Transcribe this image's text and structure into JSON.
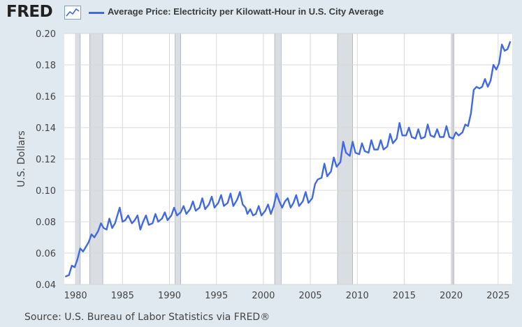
{
  "header": {
    "logo_text": "FRED",
    "logo_icon": "chart-line-icon",
    "series_title": "Average Price: Electricity per Kilowatt-Hour in U.S. City Average"
  },
  "source": "Source: U.S. Bureau of Labor Statistics via FRED®",
  "colors": {
    "line": "#4169e1",
    "recession": "#dadde1",
    "plot_bg": "#ffffff",
    "page_bg": "#e1e9f0",
    "grid": "#d8d8d8"
  },
  "chart_data": {
    "type": "line",
    "title": "Average Price: Electricity per Kilowatt-Hour in U.S. City Average",
    "ylabel": "U.S. Dollars",
    "xlabel": "",
    "xlim": [
      1978.8,
      2026.5
    ],
    "ylim": [
      0.04,
      0.2
    ],
    "x_ticks": [
      "1980",
      "1985",
      "1990",
      "1995",
      "2000",
      "2005",
      "2010",
      "2015",
      "2020",
      "2025"
    ],
    "y_ticks": [
      "0.04",
      "0.06",
      "0.08",
      "0.10",
      "0.12",
      "0.14",
      "0.16",
      "0.18",
      "0.20"
    ],
    "grid": true,
    "recessions": [
      [
        1980.0,
        1980.5
      ],
      [
        1981.5,
        1982.9
      ],
      [
        1990.6,
        1991.2
      ],
      [
        2001.2,
        2001.9
      ],
      [
        2007.9,
        2009.5
      ],
      [
        2020.1,
        2020.3
      ]
    ],
    "series": [
      {
        "values": [
          [
            1978.9,
            0.045
          ],
          [
            1979.3,
            0.046
          ],
          [
            1979.6,
            0.052
          ],
          [
            1979.9,
            0.051
          ],
          [
            1980.2,
            0.056
          ],
          [
            1980.5,
            0.063
          ],
          [
            1980.8,
            0.061
          ],
          [
            1981.1,
            0.064
          ],
          [
            1981.4,
            0.067
          ],
          [
            1981.7,
            0.072
          ],
          [
            1982.0,
            0.07
          ],
          [
            1982.4,
            0.074
          ],
          [
            1982.7,
            0.079
          ],
          [
            1983.0,
            0.076
          ],
          [
            1983.3,
            0.075
          ],
          [
            1983.6,
            0.082
          ],
          [
            1983.9,
            0.076
          ],
          [
            1984.2,
            0.079
          ],
          [
            1984.5,
            0.085
          ],
          [
            1984.7,
            0.089
          ],
          [
            1985.0,
            0.08
          ],
          [
            1985.3,
            0.081
          ],
          [
            1985.6,
            0.084
          ],
          [
            1986.0,
            0.079
          ],
          [
            1986.3,
            0.081
          ],
          [
            1986.6,
            0.084
          ],
          [
            1986.9,
            0.075
          ],
          [
            1987.2,
            0.08
          ],
          [
            1987.5,
            0.084
          ],
          [
            1987.8,
            0.078
          ],
          [
            1988.2,
            0.079
          ],
          [
            1988.5,
            0.085
          ],
          [
            1988.8,
            0.08
          ],
          [
            1989.2,
            0.082
          ],
          [
            1989.5,
            0.086
          ],
          [
            1989.8,
            0.081
          ],
          [
            1990.2,
            0.084
          ],
          [
            1990.5,
            0.089
          ],
          [
            1990.8,
            0.084
          ],
          [
            1991.2,
            0.086
          ],
          [
            1991.5,
            0.09
          ],
          [
            1991.8,
            0.085
          ],
          [
            1992.2,
            0.088
          ],
          [
            1992.5,
            0.093
          ],
          [
            1992.8,
            0.087
          ],
          [
            1993.2,
            0.089
          ],
          [
            1993.5,
            0.095
          ],
          [
            1993.8,
            0.088
          ],
          [
            1994.2,
            0.091
          ],
          [
            1994.5,
            0.096
          ],
          [
            1994.8,
            0.089
          ],
          [
            1995.2,
            0.092
          ],
          [
            1995.5,
            0.097
          ],
          [
            1995.8,
            0.09
          ],
          [
            1996.2,
            0.092
          ],
          [
            1996.5,
            0.098
          ],
          [
            1996.8,
            0.09
          ],
          [
            1997.2,
            0.094
          ],
          [
            1997.5,
            0.099
          ],
          [
            1997.8,
            0.091
          ],
          [
            1998.1,
            0.089
          ],
          [
            1998.3,
            0.085
          ],
          [
            1998.6,
            0.088
          ],
          [
            1998.9,
            0.084
          ],
          [
            1999.2,
            0.085
          ],
          [
            1999.5,
            0.09
          ],
          [
            1999.8,
            0.084
          ],
          [
            2000.2,
            0.087
          ],
          [
            2000.5,
            0.091
          ],
          [
            2000.8,
            0.085
          ],
          [
            2001.1,
            0.09
          ],
          [
            2001.4,
            0.098
          ],
          [
            2001.7,
            0.093
          ],
          [
            2002.0,
            0.089
          ],
          [
            2002.3,
            0.093
          ],
          [
            2002.6,
            0.095
          ],
          [
            2002.9,
            0.089
          ],
          [
            2003.2,
            0.092
          ],
          [
            2003.5,
            0.097
          ],
          [
            2003.8,
            0.09
          ],
          [
            2004.2,
            0.093
          ],
          [
            2004.5,
            0.099
          ],
          [
            2004.8,
            0.092
          ],
          [
            2005.2,
            0.095
          ],
          [
            2005.5,
            0.104
          ],
          [
            2005.8,
            0.107
          ],
          [
            2006.2,
            0.108
          ],
          [
            2006.5,
            0.117
          ],
          [
            2006.8,
            0.109
          ],
          [
            2007.2,
            0.112
          ],
          [
            2007.5,
            0.121
          ],
          [
            2007.8,
            0.115
          ],
          [
            2008.2,
            0.118
          ],
          [
            2008.5,
            0.131
          ],
          [
            2008.8,
            0.124
          ],
          [
            2009.2,
            0.122
          ],
          [
            2009.5,
            0.131
          ],
          [
            2009.8,
            0.124
          ],
          [
            2010.2,
            0.123
          ],
          [
            2010.5,
            0.13
          ],
          [
            2010.8,
            0.125
          ],
          [
            2011.2,
            0.124
          ],
          [
            2011.5,
            0.132
          ],
          [
            2011.8,
            0.126
          ],
          [
            2012.2,
            0.126
          ],
          [
            2012.5,
            0.132
          ],
          [
            2012.8,
            0.126
          ],
          [
            2013.2,
            0.128
          ],
          [
            2013.5,
            0.136
          ],
          [
            2013.8,
            0.13
          ],
          [
            2014.2,
            0.133
          ],
          [
            2014.5,
            0.143
          ],
          [
            2014.8,
            0.135
          ],
          [
            2015.2,
            0.135
          ],
          [
            2015.5,
            0.14
          ],
          [
            2015.8,
            0.134
          ],
          [
            2016.2,
            0.133
          ],
          [
            2016.5,
            0.139
          ],
          [
            2016.8,
            0.133
          ],
          [
            2017.2,
            0.134
          ],
          [
            2017.5,
            0.142
          ],
          [
            2017.8,
            0.135
          ],
          [
            2018.2,
            0.134
          ],
          [
            2018.5,
            0.139
          ],
          [
            2018.8,
            0.134
          ],
          [
            2019.2,
            0.134
          ],
          [
            2019.5,
            0.141
          ],
          [
            2019.8,
            0.134
          ],
          [
            2020.2,
            0.133
          ],
          [
            2020.5,
            0.137
          ],
          [
            2020.8,
            0.135
          ],
          [
            2021.2,
            0.137
          ],
          [
            2021.5,
            0.142
          ],
          [
            2021.8,
            0.141
          ],
          [
            2022.1,
            0.149
          ],
          [
            2022.4,
            0.164
          ],
          [
            2022.7,
            0.166
          ],
          [
            2023.0,
            0.165
          ],
          [
            2023.3,
            0.166
          ],
          [
            2023.6,
            0.171
          ],
          [
            2023.9,
            0.166
          ],
          [
            2024.2,
            0.17
          ],
          [
            2024.5,
            0.18
          ],
          [
            2024.8,
            0.177
          ],
          [
            2025.1,
            0.181
          ],
          [
            2025.4,
            0.193
          ],
          [
            2025.7,
            0.189
          ],
          [
            2026.0,
            0.19
          ],
          [
            2026.3,
            0.195
          ]
        ]
      }
    ]
  }
}
